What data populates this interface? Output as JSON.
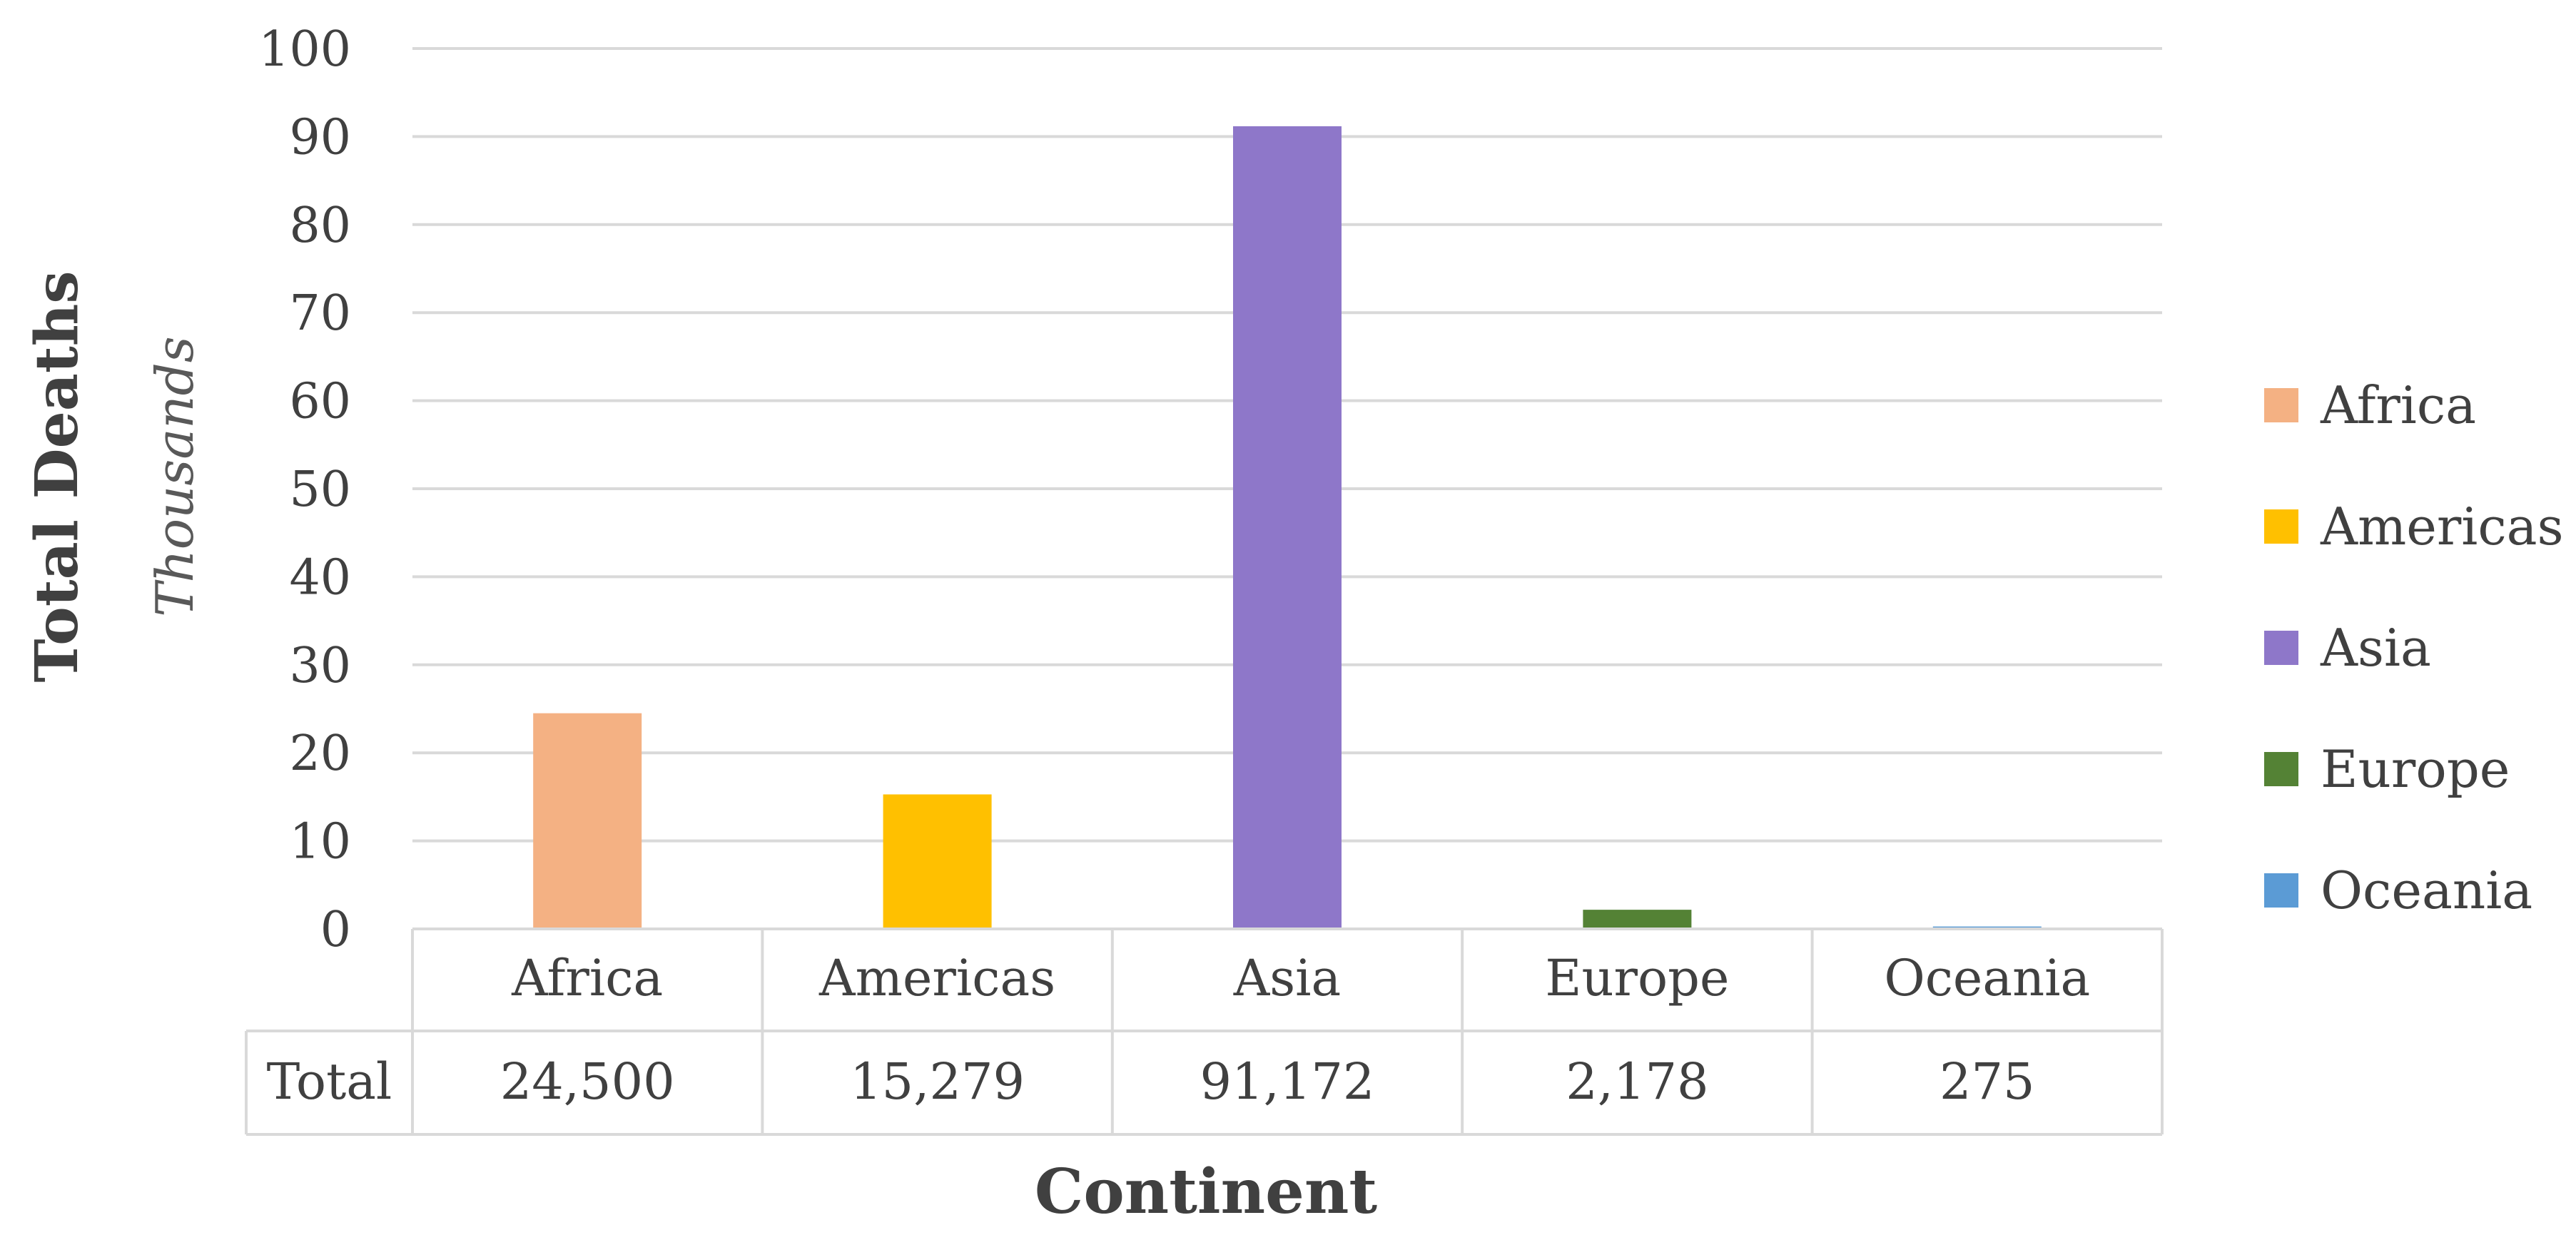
{
  "chart_data": {
    "type": "bar",
    "categories": [
      "Africa",
      "Americas",
      "Asia",
      "Europe",
      "Oceania"
    ],
    "values": [
      24.5,
      15.279,
      91.172,
      2.178,
      0.275
    ],
    "colors": [
      "#F4B183",
      "#FFC000",
      "#8E77C9",
      "#548235",
      "#5B9BD5"
    ],
    "ylim": [
      0,
      100
    ],
    "yticks": [
      "0",
      "10",
      "20",
      "30",
      "40",
      "50",
      "60",
      "70",
      "80",
      "90",
      "100"
    ],
    "grid": true,
    "ylabel": "Total Deaths",
    "yunit": "Thousands",
    "xlabel": "Continent",
    "legend": {
      "position": "right",
      "entries": [
        "Africa",
        "Americas",
        "Asia",
        "Europe",
        "Oceania"
      ]
    },
    "data_table": {
      "row_label": "Total",
      "values": [
        "24,500",
        "15,279",
        "91,172",
        "2,178",
        "275"
      ]
    }
  }
}
